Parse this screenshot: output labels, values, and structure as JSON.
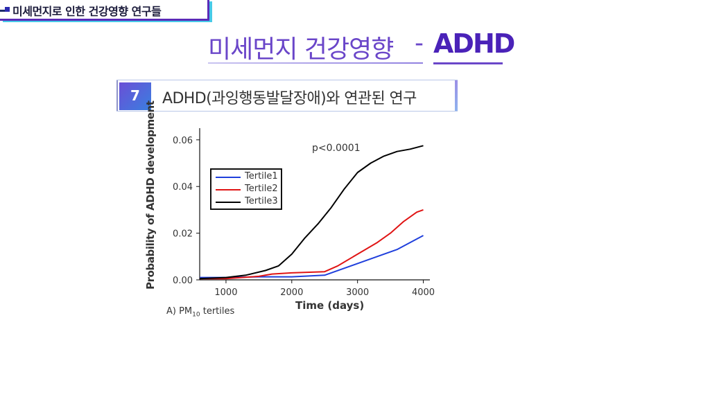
{
  "header": {
    "section_tag": "미세먼지로 인한 건강영향 연구들"
  },
  "title": {
    "main": "미세먼지 건강영향",
    "dash": "-",
    "accent": "ADHD"
  },
  "subtitle": {
    "number": "7",
    "text": "ADHD(과잉행동발달장애)와 연관된 연구"
  },
  "colors": {
    "tertile1": "#1f3fdc",
    "tertile2": "#e01414",
    "tertile3": "#000000",
    "accent": "#6a46c9"
  },
  "chart_data": {
    "type": "line",
    "xlabel": "Time (days)",
    "ylabel": "Probability of ADHD development",
    "annotation": "p<0.0001",
    "caption_prefix": "A) PM",
    "caption_sub": "10",
    "caption_suffix": " tertiles",
    "xlim": [
      600,
      4100
    ],
    "ylim": [
      0,
      0.065
    ],
    "xticks": [
      1000,
      2000,
      3000,
      4000
    ],
    "yticks": [
      0.0,
      0.02,
      0.04,
      0.06
    ],
    "ytick_labels": [
      "0.00",
      "0.02",
      "0.04",
      "0.06"
    ],
    "legend_position": "upper-left",
    "series": [
      {
        "name": "Tertile1",
        "color": "#1f3fdc",
        "x": [
          600,
          1000,
          1500,
          2000,
          2500,
          2800,
          3000,
          3300,
          3600,
          3800,
          4000
        ],
        "y": [
          0.001,
          0.001,
          0.0013,
          0.0013,
          0.002,
          0.005,
          0.007,
          0.01,
          0.013,
          0.016,
          0.019
        ]
      },
      {
        "name": "Tertile2",
        "color": "#e01414",
        "x": [
          600,
          1000,
          1500,
          1700,
          2000,
          2500,
          2700,
          3000,
          3300,
          3500,
          3700,
          3900,
          4000
        ],
        "y": [
          0.0005,
          0.0005,
          0.0015,
          0.0025,
          0.003,
          0.0035,
          0.006,
          0.011,
          0.016,
          0.02,
          0.025,
          0.029,
          0.03
        ]
      },
      {
        "name": "Tertile3",
        "color": "#000000",
        "x": [
          600,
          1000,
          1300,
          1600,
          1800,
          2000,
          2200,
          2400,
          2600,
          2800,
          3000,
          3200,
          3400,
          3600,
          3800,
          4000
        ],
        "y": [
          0.0005,
          0.001,
          0.002,
          0.004,
          0.006,
          0.011,
          0.018,
          0.024,
          0.031,
          0.039,
          0.046,
          0.05,
          0.053,
          0.055,
          0.056,
          0.0575
        ]
      }
    ]
  }
}
